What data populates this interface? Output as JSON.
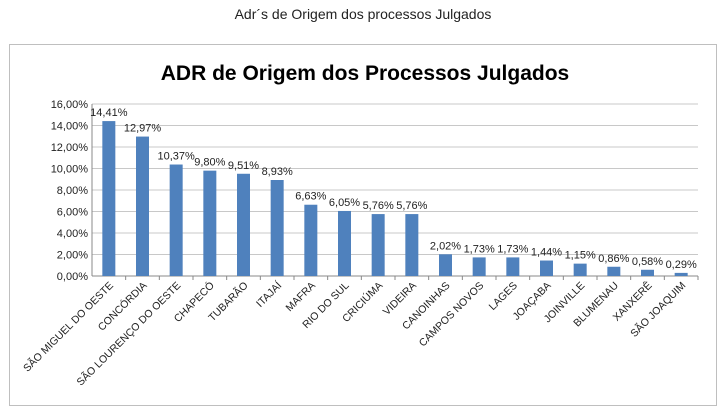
{
  "page": {
    "caption": "Adr´s de Origem dos processos Julgados"
  },
  "chart_data": {
    "type": "bar",
    "title": "ADR de Origem dos Processos Julgados",
    "xlabel": "",
    "ylabel": "",
    "ylim": [
      0,
      16
    ],
    "yticks": [
      "0,00%",
      "2,00%",
      "4,00%",
      "6,00%",
      "8,00%",
      "10,00%",
      "12,00%",
      "14,00%",
      "16,00%"
    ],
    "grid": true,
    "legend": "none",
    "bar_color": "#4f81bd",
    "categories": [
      "SÃO MIGUEL DO OESTE",
      "CONCÓRDIA",
      "SÃO LOURENÇO DO OESTE",
      "CHAPECÓ",
      "TUBARÃO",
      "ITAJAÍ",
      "MAFRA",
      "RIO DO SUL",
      "CRICIÚMA",
      "VIDEIRA",
      "CANOINHAS",
      "CAMPOS NOVOS",
      "LAGES",
      "JOAÇABA",
      "JOINVILLE",
      "BLUMENAU",
      "XANXERÊ",
      "SÃO JOAQUIM"
    ],
    "values": [
      14.41,
      12.97,
      10.37,
      9.8,
      9.51,
      8.93,
      6.63,
      6.05,
      5.76,
      5.76,
      2.02,
      1.73,
      1.73,
      1.44,
      1.15,
      0.86,
      0.58,
      0.29
    ],
    "data_labels": [
      "14,41%",
      "12,97%",
      "10,37%",
      "9,80%",
      "9,51%",
      "8,93%",
      "6,63%",
      "6,05%",
      "5,76%",
      "5,76%",
      "2,02%",
      "1,73%",
      "1,73%",
      "1,44%",
      "1,15%",
      "0,86%",
      "0,58%",
      "0,29%"
    ]
  }
}
